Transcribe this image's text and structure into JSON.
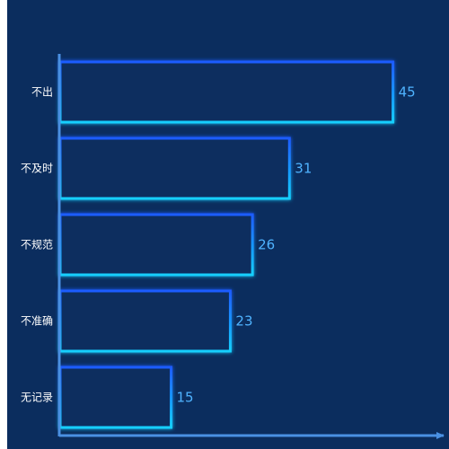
{
  "chart_data": {
    "type": "bar",
    "orientation": "horizontal",
    "categories": [
      "不出",
      "不及时",
      "不规范",
      "不准确",
      "无记录"
    ],
    "values": [
      45,
      31,
      26,
      23,
      15
    ],
    "title": "",
    "xlabel": "",
    "ylabel": "",
    "xlim": [
      0,
      51
    ],
    "grid": false,
    "legend": "none"
  },
  "colors": {
    "background": "#0b2d5e",
    "bar_stroke_top": "#1f5cff",
    "bar_stroke_bottom": "#12d0ff",
    "bar_fill": "#0b2d5e",
    "axis": "#4a90e2",
    "category_text": "#ffffff",
    "value_text": "#4fb3ff"
  }
}
